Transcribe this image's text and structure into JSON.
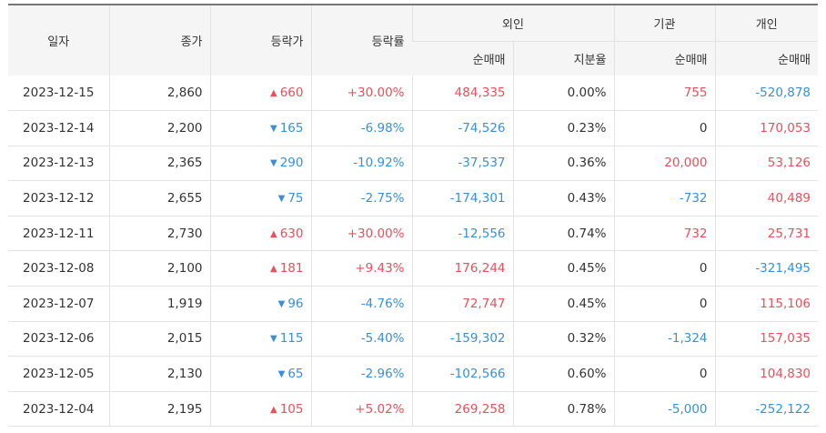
{
  "colors": {
    "up": "#e8505b",
    "down": "#3a8fd8",
    "neutral": "#333333",
    "header_bg": "#f5f5f5"
  },
  "headers": {
    "date": "일자",
    "close": "종가",
    "change": "등락가",
    "change_rate": "등락률",
    "foreign": "외인",
    "institution": "기관",
    "individual": "개인",
    "net_buy": "순매매",
    "holding_ratio": "지분율"
  },
  "rows": [
    {
      "date": "2023-12-15",
      "close": "2,860",
      "dir": "up",
      "change": "660",
      "rate": "+30.00%",
      "foreign": "484,335",
      "ratio": "0.00%",
      "inst": "755",
      "indiv": "-520,878"
    },
    {
      "date": "2023-12-14",
      "close": "2,200",
      "dir": "down",
      "change": "165",
      "rate": "-6.98%",
      "foreign": "-74,526",
      "ratio": "0.23%",
      "inst": "0",
      "indiv": "170,053"
    },
    {
      "date": "2023-12-13",
      "close": "2,365",
      "dir": "down",
      "change": "290",
      "rate": "-10.92%",
      "foreign": "-37,537",
      "ratio": "0.36%",
      "inst": "20,000",
      "indiv": "53,126"
    },
    {
      "date": "2023-12-12",
      "close": "2,655",
      "dir": "down",
      "change": "75",
      "rate": "-2.75%",
      "foreign": "-174,301",
      "ratio": "0.43%",
      "inst": "-732",
      "indiv": "40,489"
    },
    {
      "date": "2023-12-11",
      "close": "2,730",
      "dir": "up",
      "change": "630",
      "rate": "+30.00%",
      "foreign": "-12,556",
      "ratio": "0.74%",
      "inst": "732",
      "indiv": "25,731"
    },
    {
      "date": "2023-12-08",
      "close": "2,100",
      "dir": "up",
      "change": "181",
      "rate": "+9.43%",
      "foreign": "176,244",
      "ratio": "0.45%",
      "inst": "0",
      "indiv": "-321,495"
    },
    {
      "date": "2023-12-07",
      "close": "1,919",
      "dir": "down",
      "change": "96",
      "rate": "-4.76%",
      "foreign": "72,747",
      "ratio": "0.45%",
      "inst": "0",
      "indiv": "115,106"
    },
    {
      "date": "2023-12-06",
      "close": "2,015",
      "dir": "down",
      "change": "115",
      "rate": "-5.40%",
      "foreign": "-159,302",
      "ratio": "0.32%",
      "inst": "-1,324",
      "indiv": "157,035"
    },
    {
      "date": "2023-12-05",
      "close": "2,130",
      "dir": "down",
      "change": "65",
      "rate": "-2.96%",
      "foreign": "-102,566",
      "ratio": "0.60%",
      "inst": "0",
      "indiv": "104,830"
    },
    {
      "date": "2023-12-04",
      "close": "2,195",
      "dir": "up",
      "change": "105",
      "rate": "+5.02%",
      "foreign": "269,258",
      "ratio": "0.78%",
      "inst": "-5,000",
      "indiv": "-252,122"
    }
  ]
}
